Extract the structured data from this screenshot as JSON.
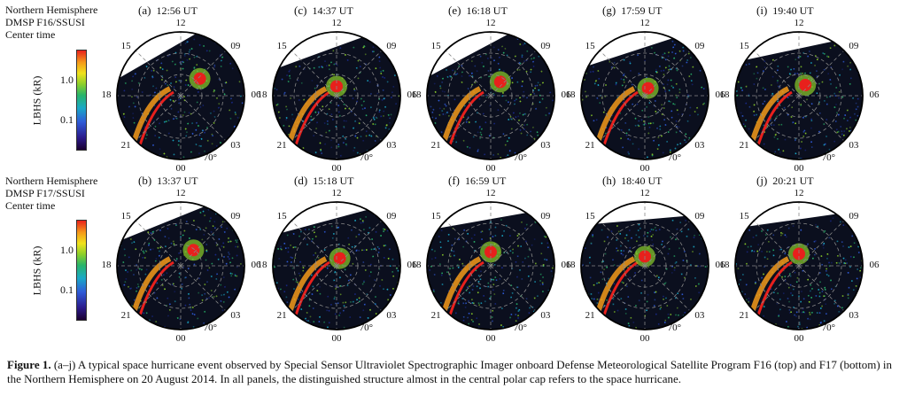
{
  "rows": [
    {
      "header": [
        "Northern Hemisphere",
        "DMSP F16/SSUSI",
        "Center time"
      ],
      "panels": [
        {
          "label": "(a)",
          "time": "12:56 UT",
          "band_angle": -30,
          "spot": [
            0.3,
            -0.1
          ]
        },
        {
          "label": "(c)",
          "time": "14:37 UT",
          "band_angle": -20,
          "spot": [
            0.0,
            0.02
          ]
        },
        {
          "label": "(e)",
          "time": "16:18 UT",
          "band_angle": -28,
          "spot": [
            0.15,
            -0.05
          ]
        },
        {
          "label": "(g)",
          "time": "17:59 UT",
          "band_angle": -18,
          "spot": [
            0.05,
            0.05
          ]
        },
        {
          "label": "(i)",
          "time": "19:40 UT",
          "band_angle": -12,
          "spot": [
            0.1,
            0.0
          ]
        }
      ]
    },
    {
      "header": [
        "Northern Hemisphere",
        "DMSP F17/SSUSI",
        "Center time"
      ],
      "panels": [
        {
          "label": "(b)",
          "time": "13:37 UT",
          "band_angle": -22,
          "spot": [
            0.2,
            -0.08
          ]
        },
        {
          "label": "(d)",
          "time": "15:18 UT",
          "band_angle": -15,
          "spot": [
            0.05,
            0.05
          ]
        },
        {
          "label": "(f)",
          "time": "16:59 UT",
          "band_angle": -10,
          "spot": [
            0.0,
            -0.05
          ]
        },
        {
          "label": "(h)",
          "time": "18:40 UT",
          "band_angle": -5,
          "spot": [
            0.0,
            0.02
          ]
        },
        {
          "label": "(j)",
          "time": "20:21 UT",
          "band_angle": -8,
          "spot": [
            0.0,
            -0.02
          ]
        }
      ]
    }
  ],
  "clock_labels": {
    "top": "12",
    "bottom": "00",
    "left": "18",
    "right": "06",
    "top_left": "15",
    "top_right": "09",
    "bottom_left": "21",
    "bottom_right": "03",
    "lat": "70°"
  },
  "colorbar": {
    "axis_label": "LBHS (kR)",
    "ticks": [
      "1.0",
      "0.1"
    ]
  },
  "colors": {
    "ring": "#000000",
    "grid": "#888888"
  },
  "caption": {
    "figure": "Figure 1.",
    "text": " (a–j) A typical space hurricane event observed by Special Sensor Ultraviolet Spectrographic Imager onboard Defense Meteorological Satellite Program F16 (top) and F17 (bottom) in the Northern Hemisphere on 20 August 2014. In all panels, the distinguished structure almost in the central polar cap refers to the space hurricane."
  }
}
